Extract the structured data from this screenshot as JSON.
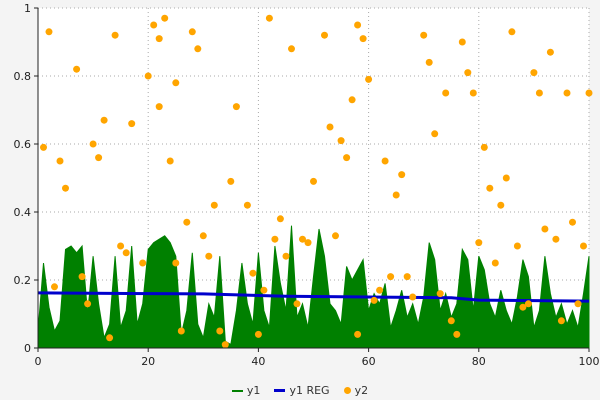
{
  "chart_data": {
    "type": "mixed",
    "title": "",
    "xlabel": "",
    "ylabel": "",
    "xlim": [
      0,
      100
    ],
    "ylim": [
      0,
      1
    ],
    "x_ticks": [
      0,
      20,
      40,
      60,
      80,
      100
    ],
    "x_tick_labels": [
      "0",
      "20",
      "40",
      "60",
      "80",
      "100"
    ],
    "y_ticks": [
      0,
      0.2,
      0.4,
      0.6,
      0.8,
      1
    ],
    "y_tick_labels": [
      "0",
      "0.2",
      "0.4",
      "0.6",
      "0.8",
      "1"
    ],
    "grid": "dotted",
    "grid_color": "#aaaaaa",
    "axis_color": "#222222",
    "plot_background": "#ffffff",
    "outer_background": "#f4f4f4",
    "legend_position": "bottom-center",
    "series": [
      {
        "name": "y1",
        "type": "area",
        "color": "#008000",
        "values": [
          0.05,
          0.25,
          0.12,
          0.05,
          0.08,
          0.29,
          0.3,
          0.28,
          0.3,
          0.1,
          0.27,
          0.13,
          0.03,
          0.07,
          0.27,
          0.06,
          0.11,
          0.3,
          0.07,
          0.13,
          0.29,
          0.31,
          0.32,
          0.33,
          0.31,
          0.27,
          0.04,
          0.11,
          0.28,
          0.07,
          0.03,
          0.13,
          0.09,
          0.27,
          0.02,
          0.01,
          0.11,
          0.25,
          0.13,
          0.07,
          0.28,
          0.11,
          0.06,
          0.3,
          0.19,
          0.11,
          0.36,
          0.09,
          0.13,
          0.06,
          0.21,
          0.35,
          0.27,
          0.13,
          0.11,
          0.07,
          0.24,
          0.2,
          0.23,
          0.26,
          0.11,
          0.16,
          0.13,
          0.19,
          0.06,
          0.11,
          0.17,
          0.09,
          0.13,
          0.07,
          0.15,
          0.31,
          0.26,
          0.11,
          0.16,
          0.09,
          0.13,
          0.29,
          0.26,
          0.11,
          0.27,
          0.23,
          0.13,
          0.09,
          0.17,
          0.11,
          0.07,
          0.15,
          0.26,
          0.21,
          0.06,
          0.11,
          0.27,
          0.16,
          0.09,
          0.13,
          0.07,
          0.11,
          0.06,
          0.16,
          0.27
        ]
      },
      {
        "name": "y1 REG",
        "type": "line",
        "color": "#0000cc",
        "width": 3,
        "points": [
          [
            0,
            0.162
          ],
          [
            30,
            0.159
          ],
          [
            45,
            0.152
          ],
          [
            60,
            0.15
          ],
          [
            75,
            0.148
          ],
          [
            80,
            0.141
          ],
          [
            100,
            0.138
          ]
        ]
      },
      {
        "name": "y2",
        "type": "scatter",
        "color": "#ffa500",
        "points": [
          [
            1,
            0.59
          ],
          [
            2,
            0.93
          ],
          [
            3,
            0.18
          ],
          [
            4,
            0.55
          ],
          [
            5,
            0.47
          ],
          [
            7,
            0.82
          ],
          [
            8,
            0.21
          ],
          [
            9,
            0.13
          ],
          [
            10,
            0.6
          ],
          [
            11,
            0.56
          ],
          [
            12,
            0.67
          ],
          [
            13,
            0.03
          ],
          [
            14,
            0.92
          ],
          [
            15,
            0.3
          ],
          [
            16,
            0.28
          ],
          [
            17,
            0.66
          ],
          [
            19,
            0.25
          ],
          [
            20,
            0.8
          ],
          [
            21,
            0.95
          ],
          [
            22,
            0.91
          ],
          [
            22,
            0.71
          ],
          [
            23,
            0.97
          ],
          [
            24,
            0.55
          ],
          [
            25,
            0.78
          ],
          [
            25,
            0.25
          ],
          [
            26,
            0.05
          ],
          [
            27,
            0.37
          ],
          [
            28,
            0.93
          ],
          [
            29,
            0.88
          ],
          [
            30,
            0.33
          ],
          [
            31,
            0.27
          ],
          [
            32,
            0.42
          ],
          [
            33,
            0.05
          ],
          [
            34,
            0.01
          ],
          [
            35,
            0.49
          ],
          [
            36,
            0.71
          ],
          [
            38,
            0.42
          ],
          [
            39,
            0.22
          ],
          [
            40,
            0.04
          ],
          [
            41,
            0.17
          ],
          [
            42,
            0.97
          ],
          [
            43,
            0.32
          ],
          [
            44,
            0.38
          ],
          [
            45,
            0.27
          ],
          [
            46,
            0.88
          ],
          [
            47,
            0.13
          ],
          [
            48,
            0.32
          ],
          [
            49,
            0.31
          ],
          [
            50,
            0.49
          ],
          [
            52,
            0.92
          ],
          [
            53,
            0.65
          ],
          [
            54,
            0.33
          ],
          [
            55,
            0.61
          ],
          [
            56,
            0.56
          ],
          [
            57,
            0.73
          ],
          [
            58,
            0.95
          ],
          [
            58,
            0.04
          ],
          [
            59,
            0.91
          ],
          [
            60,
            0.79
          ],
          [
            61,
            0.14
          ],
          [
            62,
            0.17
          ],
          [
            63,
            0.55
          ],
          [
            64,
            0.21
          ],
          [
            65,
            0.45
          ],
          [
            66,
            0.51
          ],
          [
            67,
            0.21
          ],
          [
            68,
            0.15
          ],
          [
            70,
            0.92
          ],
          [
            71,
            0.84
          ],
          [
            72,
            0.63
          ],
          [
            73,
            0.16
          ],
          [
            74,
            0.75
          ],
          [
            75,
            0.08
          ],
          [
            76,
            0.04
          ],
          [
            77,
            0.9
          ],
          [
            78,
            0.81
          ],
          [
            79,
            0.75
          ],
          [
            80,
            0.31
          ],
          [
            81,
            0.59
          ],
          [
            82,
            0.47
          ],
          [
            83,
            0.25
          ],
          [
            84,
            0.42
          ],
          [
            85,
            0.5
          ],
          [
            86,
            0.93
          ],
          [
            87,
            0.3
          ],
          [
            88,
            0.12
          ],
          [
            89,
            0.13
          ],
          [
            90,
            0.81
          ],
          [
            91,
            0.75
          ],
          [
            92,
            0.35
          ],
          [
            93,
            0.87
          ],
          [
            94,
            0.32
          ],
          [
            95,
            0.08
          ],
          [
            96,
            0.75
          ],
          [
            97,
            0.37
          ],
          [
            98,
            0.13
          ],
          [
            99,
            0.3
          ],
          [
            100,
            0.75
          ]
        ]
      }
    ]
  }
}
